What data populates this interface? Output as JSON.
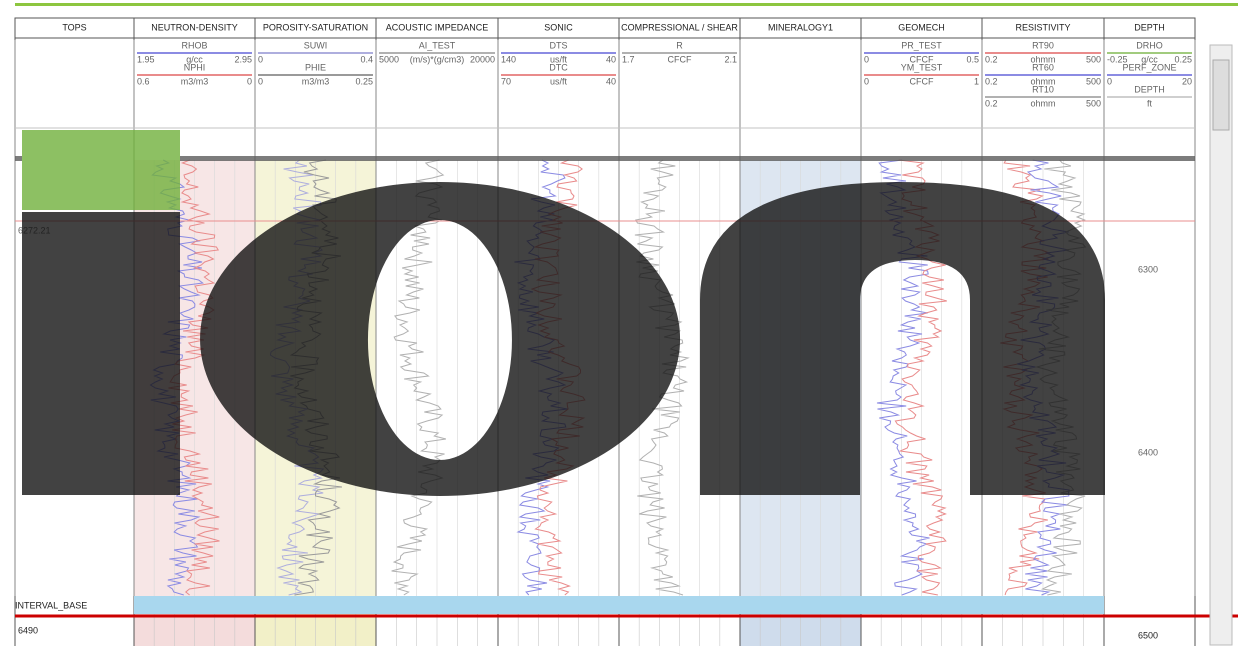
{
  "tracks": [
    {
      "title": "TOPS",
      "curves": []
    },
    {
      "title": "NEUTRON-DENSITY",
      "curves": [
        {
          "name": "RHOB",
          "left": "1.95",
          "unit": "g/cc",
          "right": "2.95",
          "color": "#5a5ad8"
        },
        {
          "name": "NPHI",
          "left": "0.6",
          "unit": "m3/m3",
          "right": "0",
          "color": "#e05a5a"
        }
      ]
    },
    {
      "title": "POROSITY-SATURATION",
      "curves": [
        {
          "name": "SUWI",
          "left": "0",
          "unit": "",
          "right": "0.4",
          "color": "#8c8cd0"
        },
        {
          "name": "PHIE",
          "left": "0",
          "unit": "m3/m3",
          "right": "0.25",
          "color": "#707070"
        }
      ]
    },
    {
      "title": "ACOUSTIC IMPEDANCE",
      "curves": [
        {
          "name": "AI_TEST",
          "left": "5000",
          "unit": "(m/s)*(g/cm3)",
          "right": "20000",
          "color": "#909090"
        }
      ]
    },
    {
      "title": "SONIC",
      "curves": [
        {
          "name": "DTS",
          "left": "140",
          "unit": "us/ft",
          "right": "40",
          "color": "#5a5ad8"
        },
        {
          "name": "DTC",
          "left": "70",
          "unit": "us/ft",
          "right": "40",
          "color": "#e05a5a"
        }
      ]
    },
    {
      "title": "COMPRESSIONAL / SHEAR",
      "curves": [
        {
          "name": "R",
          "left": "1.7",
          "unit": "CFCF",
          "right": "2.1",
          "color": "#909090"
        }
      ]
    },
    {
      "title": "MINERALOGY1",
      "curves": []
    },
    {
      "title": "GEOMECH",
      "curves": [
        {
          "name": "PR_TEST",
          "left": "0",
          "unit": "CFCF",
          "right": "0.5",
          "color": "#5a5ad8"
        },
        {
          "name": "YM_TEST",
          "left": "0",
          "unit": "CFCF",
          "right": "1",
          "color": "#e05a5a"
        }
      ]
    },
    {
      "title": "RESISTIVITY",
      "curves": [
        {
          "name": "RT90",
          "left": "0.2",
          "unit": "ohmm",
          "right": "500",
          "color": "#e05a5a"
        },
        {
          "name": "RT60",
          "left": "0.2",
          "unit": "ohmm",
          "right": "500",
          "color": "#5a5ad8"
        },
        {
          "name": "RT10",
          "left": "0.2",
          "unit": "ohmm",
          "right": "500",
          "color": "#909090"
        }
      ]
    },
    {
      "title": "DEPTH",
      "curves": [
        {
          "name": "DRHO",
          "left": "-0.25",
          "unit": "g/cc",
          "right": "0.25",
          "color": "#7ab648"
        },
        {
          "name": "PERF_ZONE",
          "left": "0",
          "unit": "",
          "right": "20",
          "color": "#5a5ad8"
        },
        {
          "name": "DEPTH",
          "left": "",
          "unit": "ft",
          "right": "",
          "color": "#bbbbbb"
        }
      ]
    }
  ],
  "depth_labels": [
    "6300",
    "6400",
    "6500"
  ],
  "tops": {
    "depth": "6272.21",
    "base_name": "INTERVAL_BASE",
    "base_depth": "6490"
  }
}
